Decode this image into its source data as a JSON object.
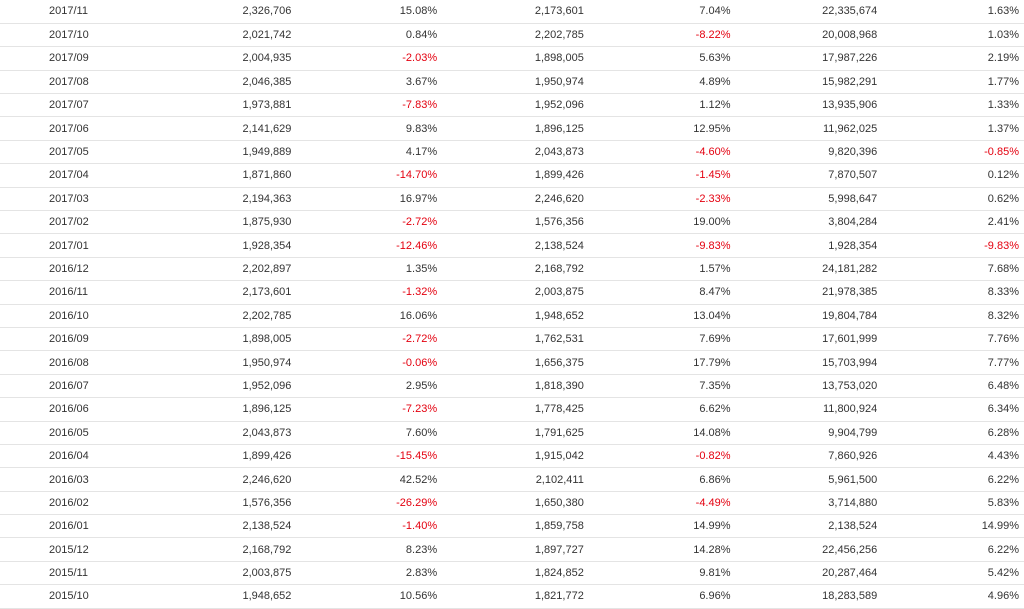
{
  "table": {
    "rows": [
      {
        "date": "2017/11",
        "v1": "2,326,706",
        "p1": "15.08%",
        "v2": "2,173,601",
        "p2": "7.04%",
        "v3": "22,335,674",
        "p3": "1.63%",
        "p1_neg": false,
        "p2_neg": false,
        "p3_neg": false
      },
      {
        "date": "2017/10",
        "v1": "2,021,742",
        "p1": "0.84%",
        "v2": "2,202,785",
        "p2": "-8.22%",
        "v3": "20,008,968",
        "p3": "1.03%",
        "p1_neg": false,
        "p2_neg": true,
        "p3_neg": false
      },
      {
        "date": "2017/09",
        "v1": "2,004,935",
        "p1": "-2.03%",
        "v2": "1,898,005",
        "p2": "5.63%",
        "v3": "17,987,226",
        "p3": "2.19%",
        "p1_neg": true,
        "p2_neg": false,
        "p3_neg": false
      },
      {
        "date": "2017/08",
        "v1": "2,046,385",
        "p1": "3.67%",
        "v2": "1,950,974",
        "p2": "4.89%",
        "v3": "15,982,291",
        "p3": "1.77%",
        "p1_neg": false,
        "p2_neg": false,
        "p3_neg": false
      },
      {
        "date": "2017/07",
        "v1": "1,973,881",
        "p1": "-7.83%",
        "v2": "1,952,096",
        "p2": "1.12%",
        "v3": "13,935,906",
        "p3": "1.33%",
        "p1_neg": true,
        "p2_neg": false,
        "p3_neg": false
      },
      {
        "date": "2017/06",
        "v1": "2,141,629",
        "p1": "9.83%",
        "v2": "1,896,125",
        "p2": "12.95%",
        "v3": "11,962,025",
        "p3": "1.37%",
        "p1_neg": false,
        "p2_neg": false,
        "p3_neg": false
      },
      {
        "date": "2017/05",
        "v1": "1,949,889",
        "p1": "4.17%",
        "v2": "2,043,873",
        "p2": "-4.60%",
        "v3": "9,820,396",
        "p3": "-0.85%",
        "p1_neg": false,
        "p2_neg": true,
        "p3_neg": true
      },
      {
        "date": "2017/04",
        "v1": "1,871,860",
        "p1": "-14.70%",
        "v2": "1,899,426",
        "p2": "-1.45%",
        "v3": "7,870,507",
        "p3": "0.12%",
        "p1_neg": true,
        "p2_neg": true,
        "p3_neg": false
      },
      {
        "date": "2017/03",
        "v1": "2,194,363",
        "p1": "16.97%",
        "v2": "2,246,620",
        "p2": "-2.33%",
        "v3": "5,998,647",
        "p3": "0.62%",
        "p1_neg": false,
        "p2_neg": true,
        "p3_neg": false
      },
      {
        "date": "2017/02",
        "v1": "1,875,930",
        "p1": "-2.72%",
        "v2": "1,576,356",
        "p2": "19.00%",
        "v3": "3,804,284",
        "p3": "2.41%",
        "p1_neg": true,
        "p2_neg": false,
        "p3_neg": false
      },
      {
        "date": "2017/01",
        "v1": "1,928,354",
        "p1": "-12.46%",
        "v2": "2,138,524",
        "p2": "-9.83%",
        "v3": "1,928,354",
        "p3": "-9.83%",
        "p1_neg": true,
        "p2_neg": true,
        "p3_neg": true
      },
      {
        "date": "2016/12",
        "v1": "2,202,897",
        "p1": "1.35%",
        "v2": "2,168,792",
        "p2": "1.57%",
        "v3": "24,181,282",
        "p3": "7.68%",
        "p1_neg": false,
        "p2_neg": false,
        "p3_neg": false
      },
      {
        "date": "2016/11",
        "v1": "2,173,601",
        "p1": "-1.32%",
        "v2": "2,003,875",
        "p2": "8.47%",
        "v3": "21,978,385",
        "p3": "8.33%",
        "p1_neg": true,
        "p2_neg": false,
        "p3_neg": false
      },
      {
        "date": "2016/10",
        "v1": "2,202,785",
        "p1": "16.06%",
        "v2": "1,948,652",
        "p2": "13.04%",
        "v3": "19,804,784",
        "p3": "8.32%",
        "p1_neg": false,
        "p2_neg": false,
        "p3_neg": false
      },
      {
        "date": "2016/09",
        "v1": "1,898,005",
        "p1": "-2.72%",
        "v2": "1,762,531",
        "p2": "7.69%",
        "v3": "17,601,999",
        "p3": "7.76%",
        "p1_neg": true,
        "p2_neg": false,
        "p3_neg": false
      },
      {
        "date": "2016/08",
        "v1": "1,950,974",
        "p1": "-0.06%",
        "v2": "1,656,375",
        "p2": "17.79%",
        "v3": "15,703,994",
        "p3": "7.77%",
        "p1_neg": true,
        "p2_neg": false,
        "p3_neg": false
      },
      {
        "date": "2016/07",
        "v1": "1,952,096",
        "p1": "2.95%",
        "v2": "1,818,390",
        "p2": "7.35%",
        "v3": "13,753,020",
        "p3": "6.48%",
        "p1_neg": false,
        "p2_neg": false,
        "p3_neg": false
      },
      {
        "date": "2016/06",
        "v1": "1,896,125",
        "p1": "-7.23%",
        "v2": "1,778,425",
        "p2": "6.62%",
        "v3": "11,800,924",
        "p3": "6.34%",
        "p1_neg": true,
        "p2_neg": false,
        "p3_neg": false
      },
      {
        "date": "2016/05",
        "v1": "2,043,873",
        "p1": "7.60%",
        "v2": "1,791,625",
        "p2": "14.08%",
        "v3": "9,904,799",
        "p3": "6.28%",
        "p1_neg": false,
        "p2_neg": false,
        "p3_neg": false
      },
      {
        "date": "2016/04",
        "v1": "1,899,426",
        "p1": "-15.45%",
        "v2": "1,915,042",
        "p2": "-0.82%",
        "v3": "7,860,926",
        "p3": "4.43%",
        "p1_neg": true,
        "p2_neg": true,
        "p3_neg": false
      },
      {
        "date": "2016/03",
        "v1": "2,246,620",
        "p1": "42.52%",
        "v2": "2,102,411",
        "p2": "6.86%",
        "v3": "5,961,500",
        "p3": "6.22%",
        "p1_neg": false,
        "p2_neg": false,
        "p3_neg": false
      },
      {
        "date": "2016/02",
        "v1": "1,576,356",
        "p1": "-26.29%",
        "v2": "1,650,380",
        "p2": "-4.49%",
        "v3": "3,714,880",
        "p3": "5.83%",
        "p1_neg": true,
        "p2_neg": true,
        "p3_neg": false
      },
      {
        "date": "2016/01",
        "v1": "2,138,524",
        "p1": "-1.40%",
        "v2": "1,859,758",
        "p2": "14.99%",
        "v3": "2,138,524",
        "p3": "14.99%",
        "p1_neg": true,
        "p2_neg": false,
        "p3_neg": false
      },
      {
        "date": "2015/12",
        "v1": "2,168,792",
        "p1": "8.23%",
        "v2": "1,897,727",
        "p2": "14.28%",
        "v3": "22,456,256",
        "p3": "6.22%",
        "p1_neg": false,
        "p2_neg": false,
        "p3_neg": false
      },
      {
        "date": "2015/11",
        "v1": "2,003,875",
        "p1": "2.83%",
        "v2": "1,824,852",
        "p2": "9.81%",
        "v3": "20,287,464",
        "p3": "5.42%",
        "p1_neg": false,
        "p2_neg": false,
        "p3_neg": false
      },
      {
        "date": "2015/10",
        "v1": "1,948,652",
        "p1": "10.56%",
        "v2": "1,821,772",
        "p2": "6.96%",
        "v3": "18,283,589",
        "p3": "4.96%",
        "p1_neg": false,
        "p2_neg": false,
        "p3_neg": false
      }
    ]
  },
  "colors": {
    "negative": "#e4000f",
    "text": "#333333",
    "row_border": "#e4e4e4"
  }
}
